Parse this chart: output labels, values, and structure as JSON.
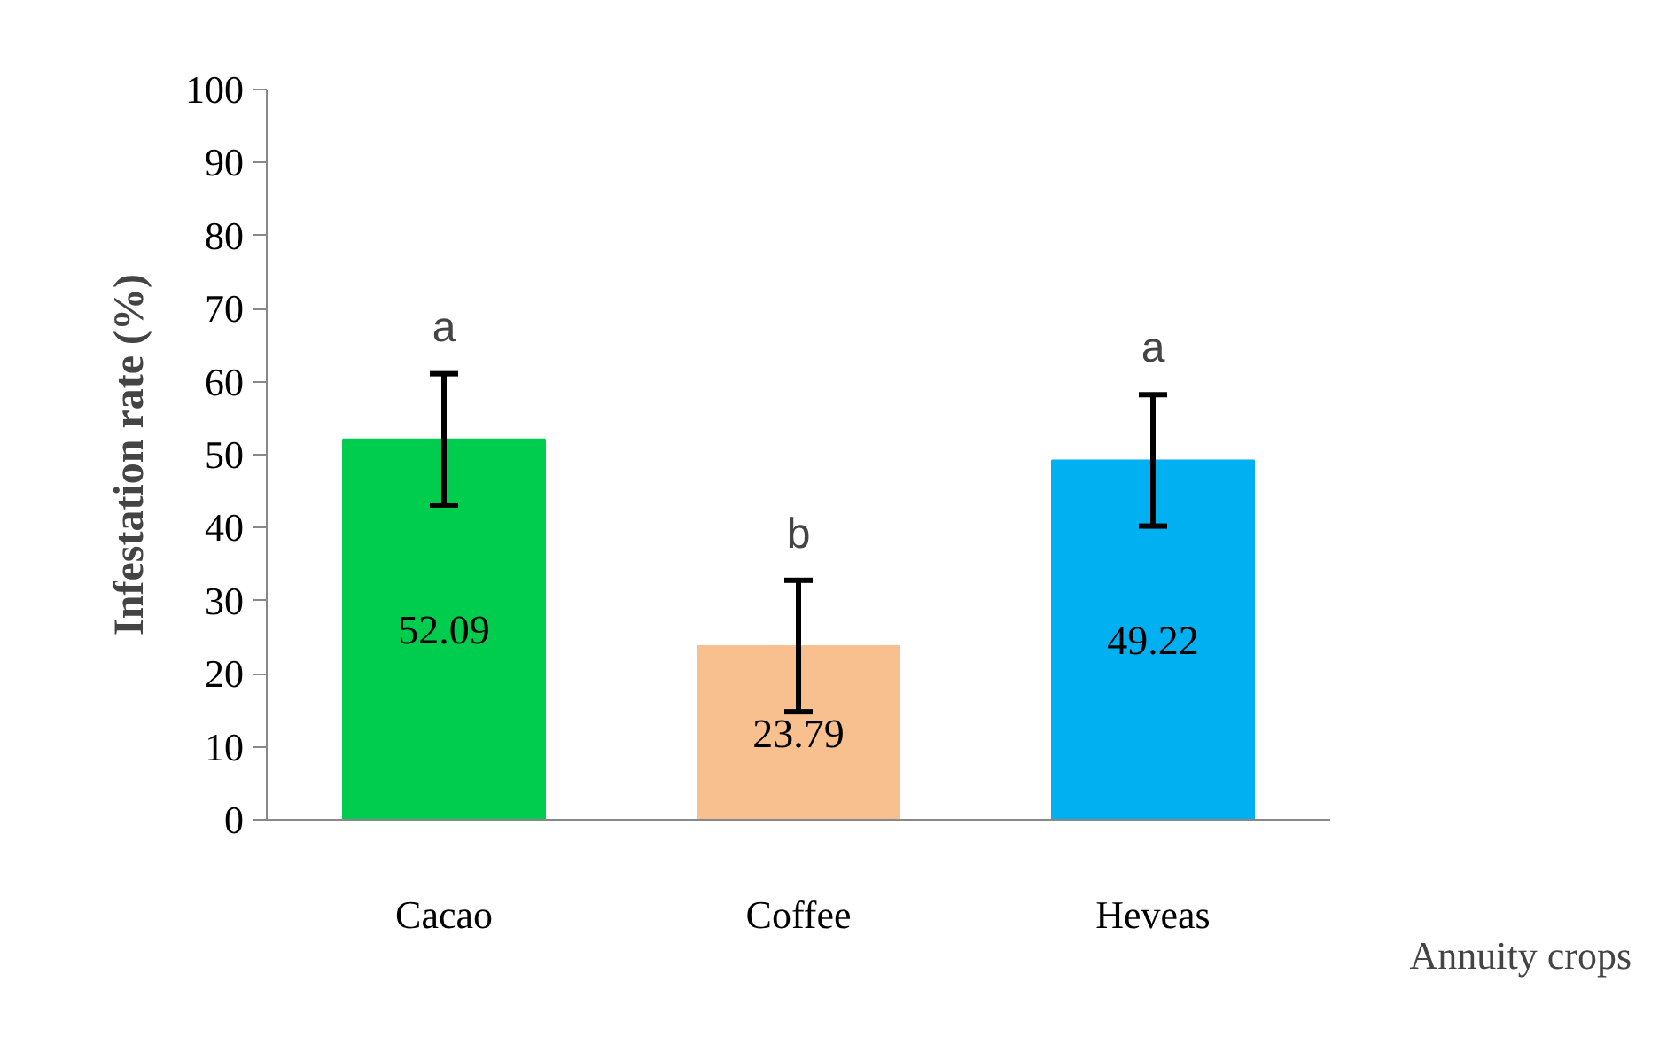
{
  "chart_data": {
    "type": "bar",
    "categories": [
      "Cacao",
      "Coffee",
      "Heveas"
    ],
    "values": [
      52.09,
      23.79,
      49.22
    ],
    "colors": [
      "#00cc4e",
      "#f8c08e",
      "#00b0f0"
    ],
    "errors": [
      9,
      9,
      9
    ],
    "data_labels": true,
    "ylabel": "Infestation rate (%)",
    "xlabel": "Annuity crops",
    "ylim": [
      0,
      100
    ],
    "yticks": [
      0,
      10,
      20,
      30,
      40,
      50,
      60,
      70,
      80,
      90,
      100
    ],
    "annotations": [
      "a",
      "b",
      "a"
    ],
    "grid": false
  }
}
